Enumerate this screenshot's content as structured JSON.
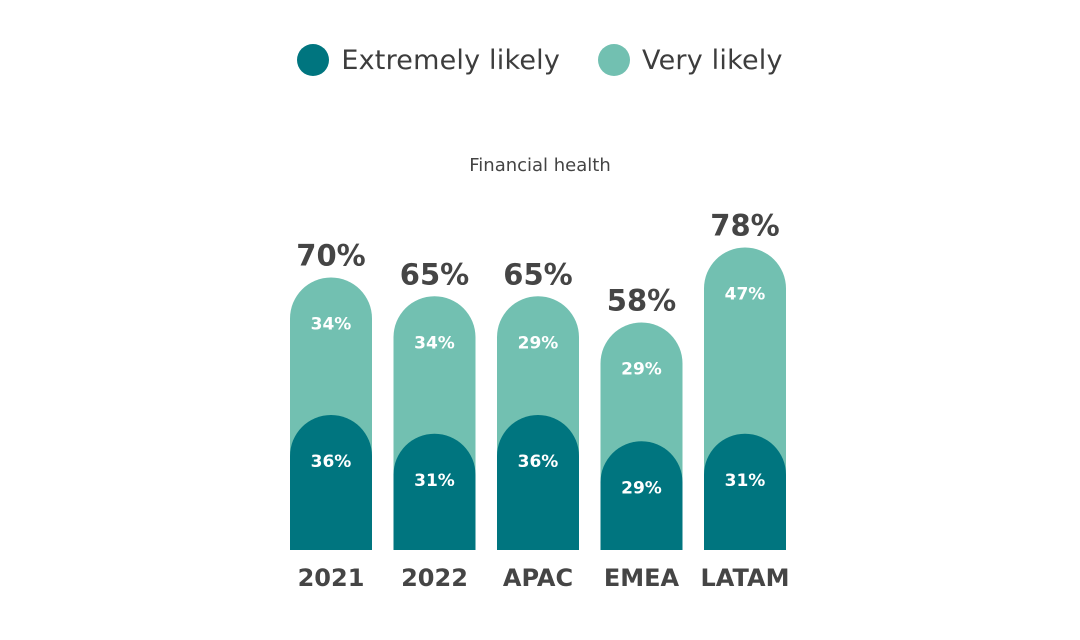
{
  "legend": [
    {
      "label": "Extremely likely",
      "color": "#00757f"
    },
    {
      "label": "Very likely",
      "color": "#72c0b1"
    }
  ],
  "chart_data": {
    "type": "bar",
    "stacked": true,
    "title": "Financial health",
    "categories": [
      "2021",
      "2022",
      "APAC",
      "EMEA",
      "LATAM"
    ],
    "series": [
      {
        "name": "Extremely likely",
        "color": "#00757f",
        "values": [
          36,
          31,
          36,
          29,
          31
        ]
      },
      {
        "name": "Very likely",
        "color": "#72c0b1",
        "values": [
          34,
          34,
          29,
          29,
          47
        ]
      }
    ],
    "totals": [
      70,
      65,
      65,
      58,
      78
    ],
    "segment_labels": {
      "Extremely likely": [
        "36%",
        "31%",
        "36%",
        "29%",
        "31%"
      ],
      "Very likely": [
        "34%",
        "34%",
        "29%",
        "29%",
        "47%"
      ]
    },
    "total_labels": [
      "70%",
      "65%",
      "65%",
      "58%",
      "78%"
    ],
    "xlabel": "",
    "ylabel": "",
    "grid": false,
    "legend_position": "top-center"
  }
}
